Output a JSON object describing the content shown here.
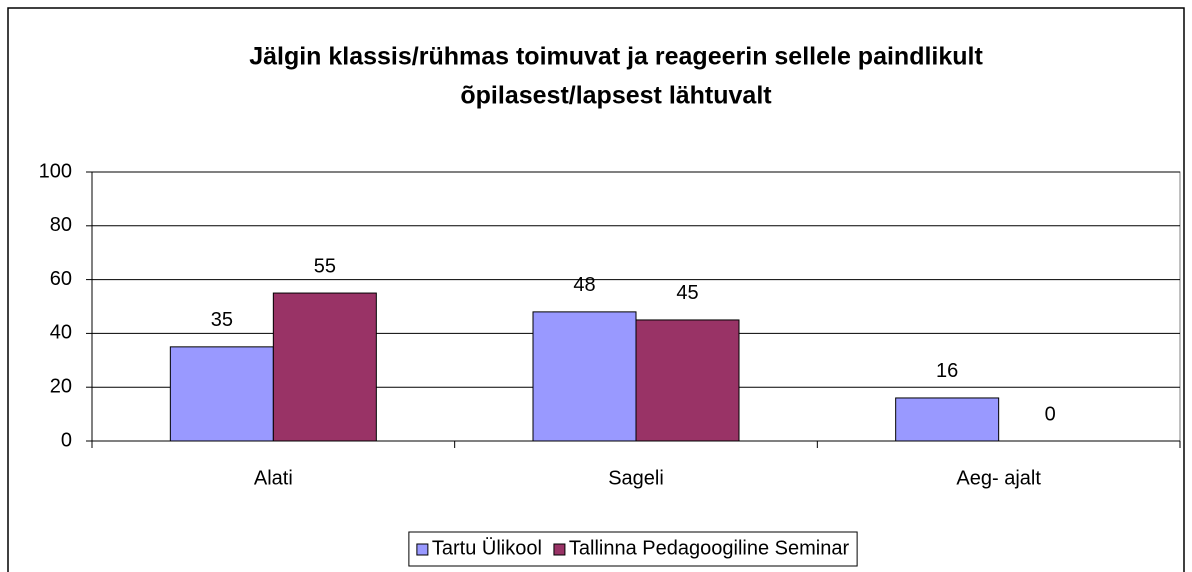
{
  "chart_data": {
    "type": "bar",
    "title": [
      "Jälgin klassis/rühmas toimuvat ja reageerin sellele paindlikult",
      "õpilasest/lapsest lähtuvalt"
    ],
    "categories": [
      "Alati",
      "Sageli",
      "Aeg- ajalt"
    ],
    "series": [
      {
        "name": "Tartu Ülikool",
        "color": "#9999ff",
        "values": [
          35,
          48,
          16
        ]
      },
      {
        "name": "Tallinna Pedagoogiline Seminar",
        "color": "#993366",
        "values": [
          55,
          45,
          0
        ]
      }
    ],
    "ylim": [
      0,
      100
    ],
    "yticks": [
      0,
      20,
      40,
      60,
      80,
      100
    ],
    "grid": true,
    "legend": "bottom"
  }
}
